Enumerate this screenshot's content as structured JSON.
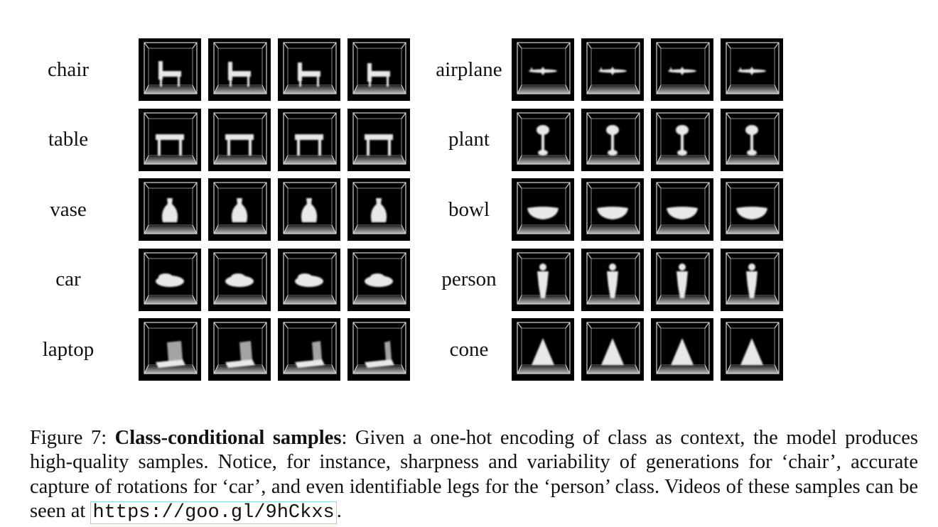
{
  "figure": {
    "left_group": [
      {
        "label": "chair",
        "samples": [
          "chair",
          "chair",
          "chair",
          "chair"
        ]
      },
      {
        "label": "table",
        "samples": [
          "table",
          "table",
          "table",
          "table"
        ]
      },
      {
        "label": "vase",
        "samples": [
          "vase",
          "vase",
          "vase",
          "vase"
        ]
      },
      {
        "label": "car",
        "samples": [
          "car",
          "car",
          "car",
          "car"
        ]
      },
      {
        "label": "laptop",
        "samples": [
          "laptop",
          "laptop",
          "laptop",
          "laptop"
        ]
      }
    ],
    "right_group": [
      {
        "label": "airplane",
        "samples": [
          "airplane",
          "airplane",
          "airplane",
          "airplane"
        ]
      },
      {
        "label": "plant",
        "samples": [
          "plant",
          "plant",
          "plant",
          "plant"
        ]
      },
      {
        "label": "bowl",
        "samples": [
          "bowl",
          "bowl",
          "bowl",
          "bowl"
        ]
      },
      {
        "label": "person",
        "samples": [
          "person",
          "person",
          "person",
          "person"
        ]
      },
      {
        "label": "cone",
        "samples": [
          "cone",
          "cone",
          "cone",
          "cone"
        ]
      }
    ]
  },
  "caption": {
    "prefix": "Figure 7: ",
    "title": "Class-conditional samples",
    "body": ": Given a one-hot encoding of class as context, the model produces high-quality samples. Notice, for instance, sharpness and variability of generations for ‘chair’, accurate capture of rotations for ‘car’, and even identifiable legs for the ‘person’ class. Videos of these samples can be seen at ",
    "link": "https://goo.gl/9hCkxs",
    "suffix": "."
  },
  "colors": {
    "cell_background": "#000000",
    "cube_edges": "#cfcfcf",
    "link_border": "#7fe0e6"
  }
}
